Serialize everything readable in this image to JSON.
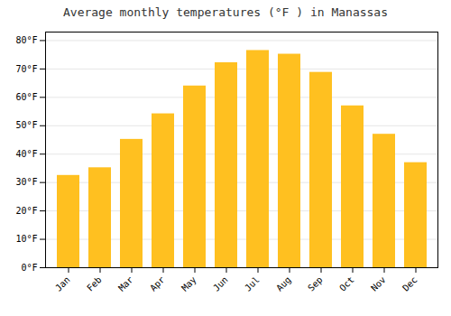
{
  "chart_data": {
    "type": "bar",
    "title": "Average monthly temperatures (°F ) in Manassas",
    "categories": [
      "Jan",
      "Feb",
      "Mar",
      "Apr",
      "May",
      "Jun",
      "Jul",
      "Aug",
      "Sep",
      "Oct",
      "Nov",
      "Dec"
    ],
    "values": [
      32.5,
      35.2,
      45.2,
      54.2,
      64.0,
      72.2,
      76.5,
      75.2,
      68.8,
      57.0,
      47.0,
      37.0
    ],
    "color": "#FFC020",
    "ylim": [
      0,
      83
    ],
    "yticks": [
      {
        "value": 0,
        "label": "0°F"
      },
      {
        "value": 10,
        "label": "10°F"
      },
      {
        "value": 20,
        "label": "20°F"
      },
      {
        "value": 30,
        "label": "30°F"
      },
      {
        "value": 40,
        "label": "40°F"
      },
      {
        "value": 50,
        "label": "50°F"
      },
      {
        "value": 60,
        "label": "60°F"
      },
      {
        "value": 70,
        "label": "70°F"
      },
      {
        "value": 80,
        "label": "80°F"
      }
    ],
    "grid": true
  }
}
